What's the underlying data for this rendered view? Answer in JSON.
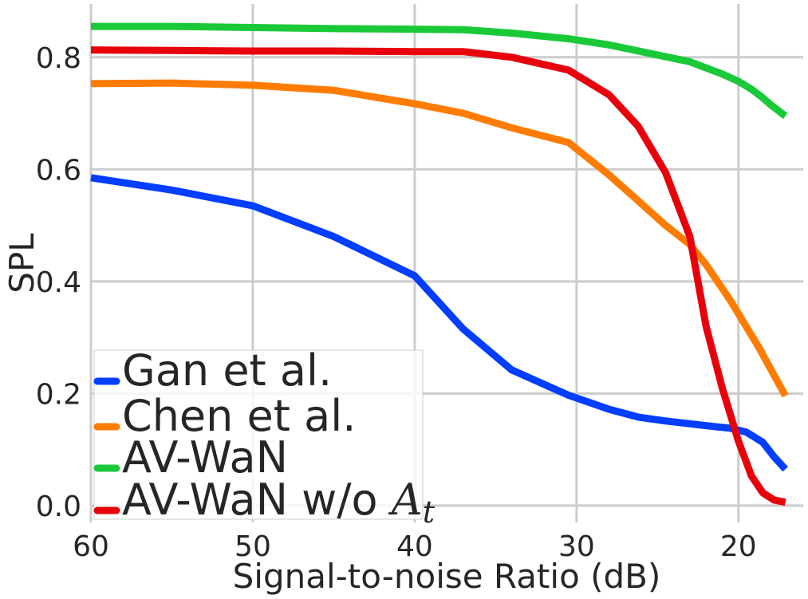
{
  "chart_data": {
    "type": "line",
    "xlabel": "Signal-to-noise Ratio (dB)",
    "ylabel": "SPL",
    "xlim": [
      60,
      16
    ],
    "ylim": [
      -0.03,
      0.895
    ],
    "x_inverted": true,
    "grid": true,
    "legend_position": "lower-left",
    "xticks": [
      {
        "value": 60,
        "label": "60"
      },
      {
        "value": 50,
        "label": "50"
      },
      {
        "value": 40,
        "label": "40"
      },
      {
        "value": 30,
        "label": "30"
      },
      {
        "value": 20,
        "label": "20"
      }
    ],
    "yticks": [
      {
        "value": 0.0,
        "label": "0.0"
      },
      {
        "value": 0.2,
        "label": "0.2"
      },
      {
        "value": 0.4,
        "label": "0.4"
      },
      {
        "value": 0.6,
        "label": "0.6"
      },
      {
        "value": 0.8,
        "label": "0.8"
      }
    ],
    "series": [
      {
        "name": "Gan et al.",
        "color": "#023eff",
        "x": [
          60,
          55,
          50,
          45,
          40,
          37,
          34,
          30.5,
          28,
          26.2,
          24.5,
          23,
          21.5,
          20.5,
          19.5,
          18.5,
          17.8,
          17.1
        ],
        "y": [
          0.585,
          0.563,
          0.535,
          0.48,
          0.41,
          0.315,
          0.242,
          0.197,
          0.172,
          0.158,
          0.151,
          0.146,
          0.141,
          0.138,
          0.131,
          0.113,
          0.087,
          0.065
        ]
      },
      {
        "name": "Chen et al.",
        "color": "#ff7c00",
        "x": [
          60,
          55,
          50,
          45,
          40,
          37,
          34,
          30.5,
          28,
          26.2,
          24.5,
          23,
          22,
          20.5,
          18.8,
          17.1
        ],
        "y": [
          0.753,
          0.754,
          0.75,
          0.741,
          0.717,
          0.7,
          0.674,
          0.648,
          0.59,
          0.544,
          0.5,
          0.466,
          0.43,
          0.366,
          0.285,
          0.196
        ]
      },
      {
        "name": "AV-WaN",
        "color": "#1ac938",
        "x": [
          60,
          55,
          50,
          45,
          40,
          37,
          34,
          30.5,
          28,
          26,
          24,
          23,
          21,
          20,
          19.2,
          18.6,
          18,
          17.1
        ],
        "y": [
          0.855,
          0.855,
          0.853,
          0.851,
          0.85,
          0.849,
          0.843,
          0.833,
          0.822,
          0.81,
          0.798,
          0.792,
          0.77,
          0.757,
          0.743,
          0.73,
          0.715,
          0.695
        ]
      },
      {
        "name": "AV-WaN w/o A_t",
        "color": "#e8000b",
        "x": [
          60,
          55,
          50,
          45,
          40,
          37,
          34,
          30.5,
          28,
          26.2,
          24.5,
          23,
          22,
          21,
          20,
          19.2,
          18.5,
          17.8,
          17.1
        ],
        "y": [
          0.813,
          0.812,
          0.811,
          0.811,
          0.81,
          0.81,
          0.8,
          0.777,
          0.733,
          0.677,
          0.594,
          0.48,
          0.32,
          0.21,
          0.115,
          0.053,
          0.023,
          0.01,
          0.006
        ]
      }
    ]
  }
}
